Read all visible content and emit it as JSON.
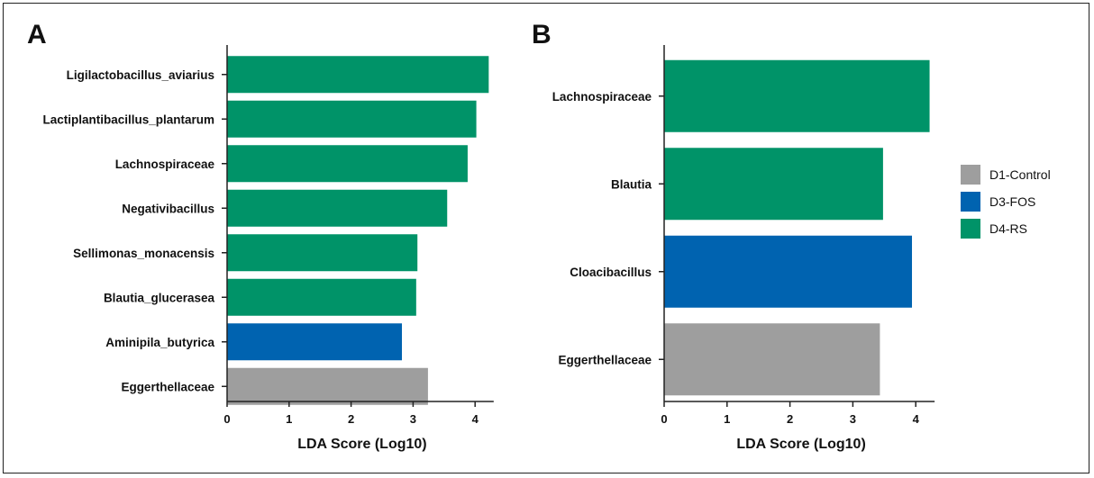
{
  "colors": {
    "D1-Control": "#9e9e9e",
    "D3-FOS": "#0063b0",
    "D4-RS": "#009368"
  },
  "legend": {
    "items": [
      {
        "label": "D1-Control",
        "color": "#9e9e9e"
      },
      {
        "label": "D3-FOS",
        "color": "#0063b0"
      },
      {
        "label": "D4-RS",
        "color": "#009368"
      }
    ],
    "placement": "right"
  },
  "chart_data": [
    {
      "type": "bar",
      "orientation": "horizontal",
      "panel": "A",
      "categories": [
        "Ligilactobacillus_aviarius",
        "Lactiplantibacillus_plantarum",
        "Lachnospiraceae",
        "Negativibacillus",
        "Sellimonas_monacensis",
        "Blautia_glucerasea",
        "Aminipila_butyrica",
        "Eggerthellaceae"
      ],
      "values": [
        4.22,
        4.02,
        3.88,
        3.55,
        3.07,
        3.05,
        2.82,
        3.24
      ],
      "groups": [
        "D4-RS",
        "D4-RS",
        "D4-RS",
        "D4-RS",
        "D4-RS",
        "D4-RS",
        "D3-FOS",
        "D1-Control"
      ],
      "xlabel": "LDA Score (Log10)",
      "xticks": [
        0,
        1,
        2,
        3,
        4
      ],
      "xlim": [
        0,
        4.3
      ]
    },
    {
      "type": "bar",
      "orientation": "horizontal",
      "panel": "B",
      "categories": [
        "Lachnospiraceae",
        "Blautia",
        "Cloacibacillus",
        "Eggerthellaceae"
      ],
      "values": [
        4.22,
        3.48,
        3.94,
        3.43
      ],
      "groups": [
        "D4-RS",
        "D4-RS",
        "D3-FOS",
        "D1-Control"
      ],
      "xlabel": "LDA Score (Log10)",
      "xticks": [
        0,
        1,
        2,
        3,
        4
      ],
      "xlim": [
        0,
        4.3
      ]
    }
  ]
}
